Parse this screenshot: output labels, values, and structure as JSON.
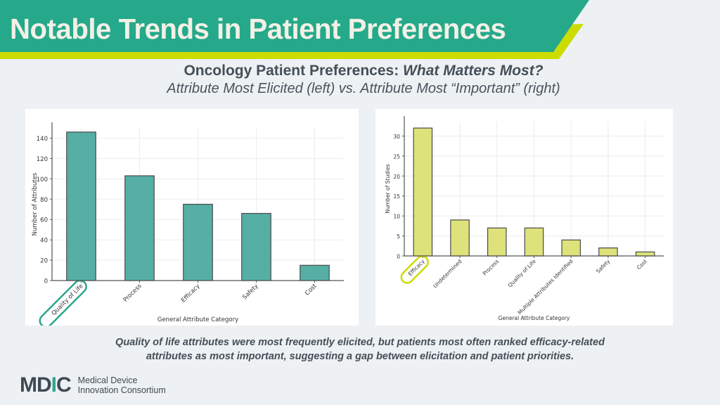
{
  "slide": {
    "title": "Notable Trends in Patient Preferences",
    "subtitle_bold": "Oncology Patient Preferences: ",
    "subtitle_italic": "What Matters Most?",
    "subtitle_line2": "Attribute Most Elicited (left) vs. Attribute Most “Important” (right)",
    "caption_line1": "Quality of life attributes were most frequently elicited, but patients most often ranked efficacy-related",
    "caption_line2": "attributes as most important, suggesting a gap between elicitation and patient priorities.",
    "logo": {
      "mark_pre": "MD",
      "mark_i": "I",
      "mark_post": "C",
      "line1": "Medical Device",
      "line2": "Innovation Consortium"
    },
    "colors": {
      "banner_green": "#25a98a",
      "banner_yellow": "#cddc00",
      "left_bar": "#55afa5",
      "right_bar": "#dde27a",
      "left_highlight": "#2aa78a",
      "right_highlight": "#cddc00"
    }
  },
  "chart_data": [
    {
      "type": "bar",
      "title": "",
      "xlabel": "General Attribute Category",
      "ylabel": "Number of Attributes",
      "categories": [
        "Quality of Life",
        "Process",
        "Efficacy",
        "Safety",
        "Cost"
      ],
      "values": [
        146,
        103,
        75,
        66,
        15
      ],
      "ylim": [
        0,
        150
      ],
      "yticks": [
        0,
        20,
        40,
        60,
        80,
        100,
        120,
        140
      ],
      "grid": true,
      "highlighted_category": "Quality of Life"
    },
    {
      "type": "bar",
      "title": "",
      "xlabel": "General Attribute Category",
      "ylabel": "Number of Studies",
      "categories": [
        "Efficacy",
        "Undetermined",
        "Process",
        "Quality of Life",
        "Multiple Attributes Identified",
        "Safety",
        "Cost"
      ],
      "values": [
        32,
        9,
        7,
        7,
        4,
        2,
        1
      ],
      "ylim": [
        0,
        33.6
      ],
      "yticks": [
        0,
        5,
        10,
        15,
        20,
        25,
        30
      ],
      "grid": true,
      "highlighted_category": "Efficacy"
    }
  ]
}
